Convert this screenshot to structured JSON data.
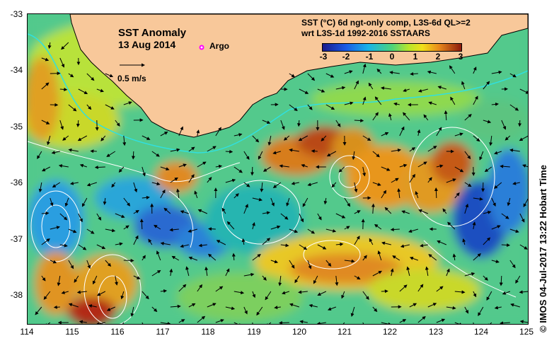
{
  "map": {
    "title": "SST Anomaly",
    "date": "13 Aug 2014",
    "legend_argo": "Argo",
    "scale_label": "0.5 m/s",
    "product_line1": "SST (°C) 6d ngt-only comp, L3S-6d QL>=2",
    "product_line2": "wrt L3S-1d 1992-2016 SSTAARS",
    "credit": "© IMOS 04-Jul-2017 13:22 Hobart Time",
    "colorbar_ticks": [
      "-3",
      "-2",
      "-1",
      "0",
      "1",
      "2",
      "3"
    ],
    "lat_labels": [
      "-33",
      "-34",
      "-35",
      "-36",
      "-37",
      "-38"
    ],
    "lon_labels": [
      "114",
      "115",
      "116",
      "117",
      "118",
      "119",
      "120",
      "121",
      "122",
      "123",
      "124",
      "125"
    ],
    "colors": {
      "land": "#f8c89a",
      "argo_marker": "#ff00ff",
      "contour": "#ffffff",
      "arrow": "#000000"
    }
  }
}
